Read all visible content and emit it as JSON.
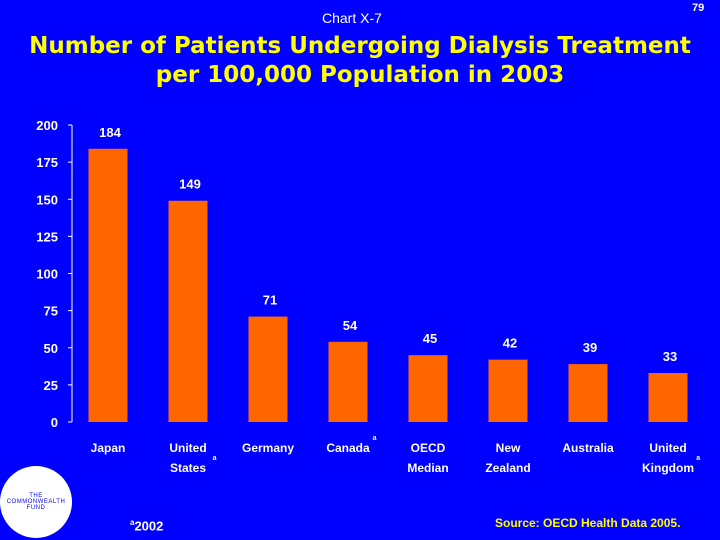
{
  "page_number": "79",
  "chart_label": "Chart X-7",
  "title_lines": [
    "Number of Patients Undergoing Dialysis Treatment",
    "per 100,000 Population in 2003"
  ],
  "chart_data": {
    "type": "bar",
    "title": "Number of Patients Undergoing Dialysis Treatment per 100,000 Population in 2003",
    "categories": [
      {
        "lines": [
          "Japan"
        ],
        "marker": ""
      },
      {
        "lines": [
          "United",
          "States"
        ],
        "marker": "a"
      },
      {
        "lines": [
          "Germany"
        ],
        "marker": ""
      },
      {
        "lines": [
          "Canada"
        ],
        "marker": "a"
      },
      {
        "lines": [
          "OECD",
          "Median"
        ],
        "marker": ""
      },
      {
        "lines": [
          "New",
          "Zealand"
        ],
        "marker": ""
      },
      {
        "lines": [
          "Australia"
        ],
        "marker": ""
      },
      {
        "lines": [
          "United",
          "Kingdom"
        ],
        "marker": "a"
      }
    ],
    "values": [
      184,
      149,
      71,
      54,
      45,
      42,
      39,
      33
    ],
    "ylim": [
      0,
      200
    ],
    "yticks": [
      0,
      25,
      50,
      75,
      100,
      125,
      150,
      175,
      200
    ],
    "xlabel": "",
    "ylabel": "",
    "bar_color": "#ff6600",
    "grid": false
  },
  "footnote": {
    "marker": "a",
    "text": "2002"
  },
  "source": "Source: OECD Health Data 2005.",
  "logo": {
    "lines": [
      "THE",
      "COMMONWEALTH",
      "FUND"
    ]
  }
}
